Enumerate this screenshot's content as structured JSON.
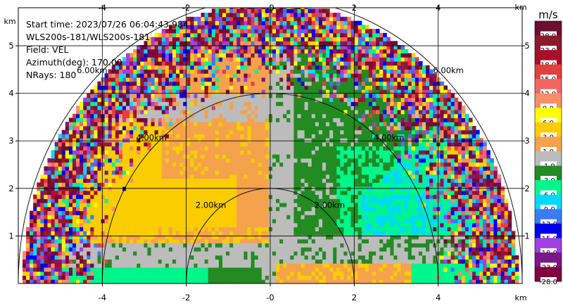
{
  "info": {
    "start_time": "Start time: 2023/07/26 06:04:43.984",
    "instrument": "WLS200s-181/WLS200s-181",
    "field": "Field: VEL",
    "azimuth": "Azimuth(deg): 170.00",
    "nrays": "NRays: 180"
  },
  "chart_data": {
    "type": "heatmap",
    "subtype": "rhi_scan",
    "title": "",
    "xlabel": "km",
    "ylabel": "km",
    "xlim": [
      -6.0,
      6.0
    ],
    "ylim": [
      0.0,
      5.8
    ],
    "x_ticks": [
      -4,
      -2,
      0,
      2,
      4
    ],
    "x_tick_labels": [
      "-4",
      "-2",
      "-0",
      "2",
      "4"
    ],
    "y_ticks": [
      1,
      2,
      3,
      4,
      5
    ],
    "y_tick_labels": [
      "1",
      "2",
      "3",
      "4",
      "5"
    ],
    "axis_unit_label": "km",
    "grid": true,
    "max_range_km": 5.9,
    "range_rings": [
      {
        "radius_km": 2,
        "label": "2.00km"
      },
      {
        "radius_km": 4,
        "label": "4.00km"
      },
      {
        "radius_km": 6,
        "label": "6.00km"
      }
    ],
    "colorbar": {
      "unit": "m/s",
      "placement": "right",
      "bins": [
        {
          "label": "28.0",
          "color": "#6d0f2e"
        },
        {
          "label": "23.0",
          "color": "#8b1a2b"
        },
        {
          "label": "18.0",
          "color": "#a8102a"
        },
        {
          "label": "15.0",
          "color": "#e2403e"
        },
        {
          "label": "12.0",
          "color": "#f26563"
        },
        {
          "label": "9.0",
          "color": "#f58f66"
        },
        {
          "label": "6.0",
          "color": "#ffff00"
        },
        {
          "label": "3.0",
          "color": "#f9cd00"
        },
        {
          "label": "1.0",
          "color": "#f4a24c"
        },
        {
          "label": "-1.0",
          "color": "#bcbcbc"
        },
        {
          "label": "-3.0",
          "color": "#228b22"
        },
        {
          "label": "-6.0",
          "color": "#00f58a"
        },
        {
          "label": "-9.0",
          "color": "#00d9ff"
        },
        {
          "label": "-12.0",
          "color": "#3c7bf4"
        },
        {
          "label": "-15.0",
          "color": "#0000ee"
        },
        {
          "label": "-18.0",
          "color": "#a040e0"
        },
        {
          "label": "-23.0",
          "color": "#7a1888"
        },
        {
          "label": "-28.0",
          "color": "#800040"
        }
      ]
    }
  }
}
